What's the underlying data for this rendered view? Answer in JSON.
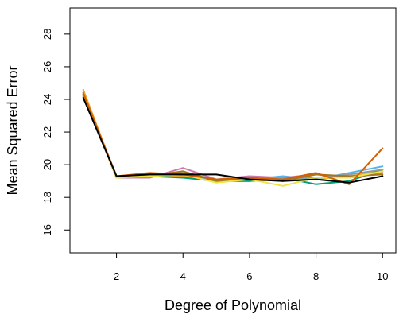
{
  "chart_data": {
    "type": "line",
    "xlabel": "Degree of Polynomial",
    "ylabel": "Mean Squared Error",
    "xlim": [
      0.6,
      10.4
    ],
    "ylim": [
      14.6,
      29.6
    ],
    "x_ticks": [
      2,
      4,
      6,
      8,
      10
    ],
    "y_ticks": [
      16,
      18,
      20,
      22,
      24,
      26,
      28
    ],
    "x": [
      1,
      2,
      3,
      4,
      5,
      6,
      7,
      8,
      9,
      10
    ],
    "grid": false,
    "series": [
      {
        "color": "#e5a823",
        "values": [
          24.6,
          19.2,
          19.3,
          19.3,
          19.0,
          19.0,
          19.1,
          19.1,
          19.3,
          19.6
        ]
      },
      {
        "color": "#56b4e9",
        "values": [
          24.3,
          19.3,
          19.3,
          19.4,
          19.0,
          19.1,
          19.3,
          19.1,
          19.5,
          19.9
        ]
      },
      {
        "color": "#009e73",
        "values": [
          24.2,
          19.3,
          19.3,
          19.2,
          19.0,
          19.0,
          19.2,
          18.8,
          19.0,
          19.7
        ]
      },
      {
        "color": "#cc79a7",
        "values": [
          24.4,
          19.2,
          19.2,
          19.8,
          19.1,
          19.3,
          19.2,
          19.4,
          19.2,
          19.5
        ]
      },
      {
        "color": "#999999",
        "values": [
          24.3,
          19.3,
          19.4,
          19.5,
          19.1,
          19.1,
          19.2,
          19.2,
          19.4,
          19.7
        ]
      },
      {
        "color": "#a6761d",
        "values": [
          24.3,
          19.2,
          19.3,
          19.6,
          19.0,
          19.2,
          19.0,
          19.4,
          19.3,
          19.4
        ]
      },
      {
        "color": "#f0e442",
        "values": [
          24.4,
          19.2,
          19.3,
          19.4,
          18.9,
          19.1,
          18.7,
          19.2,
          19.2,
          19.6
        ]
      },
      {
        "color": "#d55e00",
        "values": [
          24.4,
          19.3,
          19.5,
          19.4,
          19.1,
          19.2,
          19.1,
          19.5,
          18.8,
          21.0
        ]
      },
      {
        "color": "#000000",
        "values": [
          24.1,
          19.3,
          19.4,
          19.4,
          19.4,
          19.1,
          19.0,
          19.1,
          18.9,
          19.3
        ]
      }
    ]
  }
}
